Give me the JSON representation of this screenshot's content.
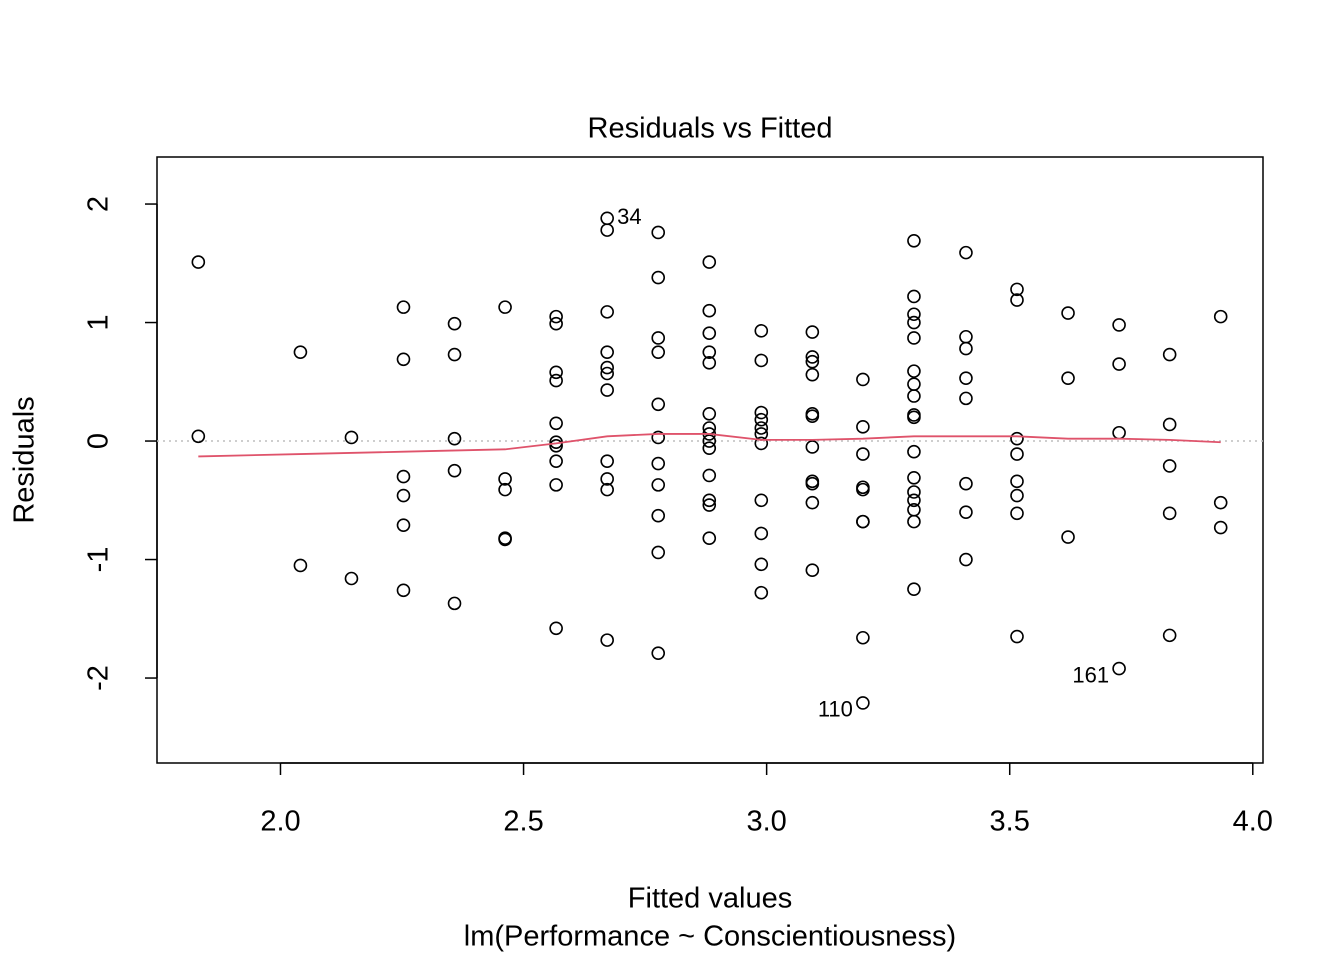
{
  "chart_data": {
    "type": "scatter",
    "title": "Residuals vs Fitted",
    "x_label": "Fitted values",
    "subtitle": "lm(Performance ~ Conscientiousness)",
    "y_label": "Residuals",
    "xlim": [
      1.746,
      4.021
    ],
    "ylim": [
      -2.717,
      2.397
    ],
    "xticks": [
      {
        "value": 2,
        "label": "2.0"
      },
      2.5,
      {
        "value": 3,
        "label": "3.0"
      },
      3.5,
      {
        "value": 4,
        "label": "4.0"
      }
    ],
    "yticks": [
      -2,
      -1,
      0,
      1,
      2
    ],
    "reference_line": {
      "y": 0,
      "color": "#bebebe",
      "dotted": true
    },
    "points": {
      "color": "#000000",
      "x": [
        1.831,
        1.831,
        2.041,
        2.041,
        2.146,
        2.146,
        2.253,
        2.253,
        2.253,
        2.253,
        2.253,
        2.253,
        2.358,
        2.358,
        2.358,
        2.358,
        2.358,
        2.462,
        2.462,
        2.462,
        2.462,
        2.462,
        2.567,
        2.567,
        2.567,
        2.567,
        2.567,
        2.567,
        2.567,
        2.567,
        2.567,
        2.567,
        2.672,
        2.672,
        2.672,
        2.672,
        2.672,
        2.672,
        2.672,
        2.672,
        2.672,
        2.672,
        2.672,
        2.777,
        2.777,
        2.777,
        2.777,
        2.777,
        2.777,
        2.777,
        2.777,
        2.777,
        2.777,
        2.777,
        2.882,
        2.882,
        2.882,
        2.882,
        2.882,
        2.882,
        2.882,
        2.882,
        2.882,
        2.882,
        2.882,
        2.882,
        2.882,
        2.882,
        2.989,
        2.989,
        2.989,
        2.989,
        2.989,
        2.989,
        2.989,
        2.989,
        2.989,
        2.989,
        2.989,
        3.094,
        3.094,
        3.094,
        3.094,
        3.094,
        3.094,
        3.094,
        3.094,
        3.094,
        3.094,
        3.094,
        3.198,
        3.198,
        3.198,
        3.198,
        3.198,
        3.198,
        3.198,
        3.198,
        3.198,
        3.303,
        3.303,
        3.303,
        3.303,
        3.303,
        3.303,
        3.303,
        3.303,
        3.303,
        3.303,
        3.303,
        3.303,
        3.303,
        3.303,
        3.303,
        3.303,
        3.303,
        3.41,
        3.41,
        3.41,
        3.41,
        3.41,
        3.41,
        3.41,
        3.41,
        3.515,
        3.515,
        3.515,
        3.515,
        3.515,
        3.515,
        3.515,
        3.515,
        3.62,
        3.62,
        3.62,
        3.725,
        3.725,
        3.725,
        3.725,
        3.829,
        3.829,
        3.829,
        3.829,
        3.829,
        3.934,
        3.934,
        3.934
      ],
      "y": [
        1.51,
        0.04,
        0.75,
        -1.05,
        0.03,
        -1.16,
        1.13,
        0.69,
        -0.3,
        -0.46,
        -0.71,
        -1.26,
        0.99,
        0.73,
        0.02,
        -0.25,
        -1.37,
        1.13,
        -0.32,
        -0.41,
        -0.82,
        -0.83,
        1.05,
        0.99,
        0.58,
        0.51,
        0.15,
        -0.01,
        -0.04,
        -0.17,
        -0.37,
        -1.58,
        1.88,
        1.78,
        1.09,
        0.75,
        0.62,
        0.57,
        0.43,
        -0.17,
        -0.32,
        -0.41,
        -1.68,
        1.76,
        1.38,
        0.87,
        0.75,
        0.31,
        0.03,
        -0.19,
        -0.37,
        -0.63,
        -0.94,
        -1.79,
        1.51,
        1.1,
        0.91,
        0.75,
        0.66,
        0.23,
        0.11,
        0.06,
        0,
        -0.06,
        -0.29,
        -0.5,
        -0.54,
        -0.82,
        0.93,
        0.68,
        0.24,
        0.18,
        0.11,
        0.06,
        -0.02,
        -0.5,
        -0.78,
        -1.04,
        -1.28,
        0.92,
        0.71,
        0.67,
        0.56,
        0.23,
        0.21,
        -0.05,
        -0.34,
        -0.36,
        -0.52,
        -1.09,
        0.52,
        0.12,
        -0.11,
        -0.39,
        -0.41,
        -0.68,
        -0.68,
        -1.66,
        -2.21,
        1.69,
        1.22,
        1.07,
        1.0,
        0.87,
        0.59,
        0.48,
        0.38,
        0.22,
        0.2,
        -0.09,
        -0.31,
        -0.43,
        -0.5,
        -0.58,
        -0.68,
        -1.25,
        1.59,
        0.88,
        0.78,
        0.53,
        0.36,
        -0.36,
        -0.6,
        -1.0,
        1.28,
        1.19,
        0.02,
        -0.11,
        -0.34,
        -0.46,
        -0.61,
        -1.65,
        1.08,
        0.53,
        -0.81,
        0.98,
        0.65,
        0.07,
        -1.92,
        0.73,
        0.14,
        -0.21,
        -0.61,
        -1.64,
        1.05,
        -0.52,
        -0.73
      ]
    },
    "smooth": {
      "color": "#df536b",
      "x": [
        1.831,
        2.041,
        2.253,
        2.462,
        2.567,
        2.672,
        2.777,
        2.882,
        2.989,
        3.094,
        3.198,
        3.303,
        3.41,
        3.515,
        3.62,
        3.725,
        3.829,
        3.934
      ],
      "y": [
        -0.13,
        -0.11,
        -0.09,
        -0.07,
        -0.02,
        0.04,
        0.06,
        0.06,
        0.01,
        0.01,
        0.02,
        0.04,
        0.04,
        0.04,
        0.02,
        0.02,
        0.01,
        -0.01
      ]
    },
    "annotations": [
      {
        "text": "34",
        "x": 2.672,
        "y": 1.88,
        "side": "right"
      },
      {
        "text": "110",
        "x": 3.198,
        "y": -2.21,
        "side": "left"
      },
      {
        "text": "161",
        "x": 3.725,
        "y": -1.92,
        "side": "left"
      }
    ]
  }
}
